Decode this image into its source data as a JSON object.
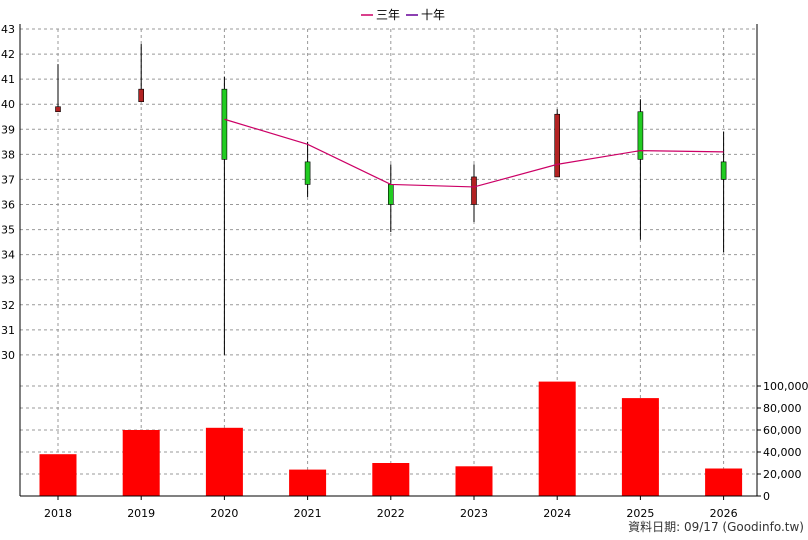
{
  "chart_data": {
    "type": "candlestick",
    "categories": [
      "2018",
      "2019",
      "2020",
      "2021",
      "2022",
      "2023",
      "2024",
      "2025",
      "2026"
    ],
    "price": {
      "ylim": [
        29,
        43
      ],
      "yticks": [
        "30",
        "31",
        "32",
        "33",
        "34",
        "35",
        "36",
        "37",
        "38",
        "39",
        "40",
        "41",
        "42",
        "43"
      ],
      "candles": [
        {
          "x": "2018",
          "open": 39.9,
          "close": 39.7,
          "high": 41.6,
          "low": 39.7,
          "color": "#b22222"
        },
        {
          "x": "2019",
          "open": 40.6,
          "close": 40.1,
          "high": 42.4,
          "low": 40.1,
          "color": "#b22222"
        },
        {
          "x": "2020",
          "open": 37.8,
          "close": 40.6,
          "high": 41.1,
          "low": 30.0,
          "color": "#22cc22"
        },
        {
          "x": "2021",
          "open": 36.8,
          "close": 37.7,
          "high": 38.5,
          "low": 36.3,
          "color": "#22cc22"
        },
        {
          "x": "2022",
          "open": 36.0,
          "close": 36.8,
          "high": 37.6,
          "low": 34.9,
          "color": "#22cc22"
        },
        {
          "x": "2023",
          "open": 37.1,
          "close": 36.0,
          "high": 37.6,
          "low": 35.3,
          "color": "#b22222"
        },
        {
          "x": "2024",
          "open": 39.6,
          "close": 37.1,
          "high": 39.8,
          "low": 37.1,
          "color": "#b22222"
        },
        {
          "x": "2025",
          "open": 37.8,
          "close": 39.7,
          "high": 40.2,
          "low": 34.6,
          "color": "#22cc22"
        },
        {
          "x": "2026",
          "open": 37.0,
          "close": 37.7,
          "high": 38.9,
          "low": 34.1,
          "color": "#22cc22"
        }
      ]
    },
    "series": [
      {
        "name": "三年",
        "color": "#cc0066",
        "x": [
          "2020",
          "2021",
          "2022",
          "2023",
          "2024",
          "2025",
          "2026"
        ],
        "values": [
          39.4,
          38.4,
          36.8,
          36.7,
          37.6,
          38.15,
          38.1
        ]
      },
      {
        "name": "十年",
        "color": "#660099",
        "x": [],
        "values": []
      }
    ],
    "volume": {
      "ylim": [
        0,
        110000
      ],
      "yticks": [
        "0",
        "20,000",
        "40,000",
        "60,000",
        "80,000",
        "100,000"
      ],
      "values": [
        38000,
        60000,
        62000,
        24000,
        30000,
        27000,
        104000,
        89000,
        25000
      ],
      "color": "#ff0000"
    },
    "legend_position": "top-center",
    "grid": true
  },
  "footer": {
    "text": "資料日期: 09/17  (Goodinfo.tw)"
  }
}
